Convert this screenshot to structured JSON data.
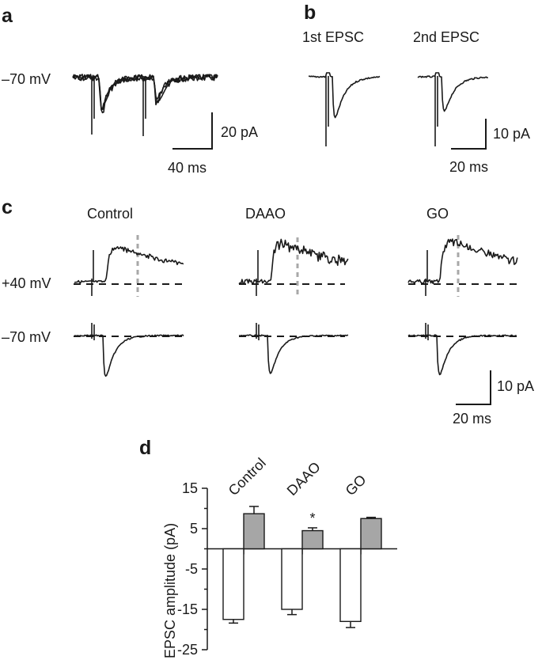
{
  "panel_a": {
    "letter": "a",
    "holding_label": "–70 mV",
    "scale_y_label": "20 pA",
    "scale_x_label": "40 ms"
  },
  "panel_b": {
    "letter": "b",
    "first_title": "1st EPSC",
    "second_title": "2nd EPSC",
    "scale_y_label": "10 pA",
    "scale_x_label": "20 ms"
  },
  "panel_c": {
    "letter": "c",
    "conditions": [
      "Control",
      "DAAO",
      "GO"
    ],
    "row_labels": [
      "+40 mV",
      "–70 mV"
    ],
    "scale_y_label": "10 pA",
    "scale_x_label": "20 ms"
  },
  "panel_d": {
    "letter": "d",
    "significance_marker": "*"
  },
  "chart_data": {
    "type": "bar",
    "title": "",
    "categories": [
      "Control",
      "DAAO",
      "GO"
    ],
    "ylabel": "EPSC amplitude (pA)",
    "xlabel": "",
    "ylim": [
      -25,
      15
    ],
    "yticks": [
      15,
      5,
      -5,
      -15,
      -25
    ],
    "grid": false,
    "series": [
      {
        "values": [
          -17.5,
          -15.0,
          -18.0
        ],
        "errors": [
          0.9,
          1.3,
          1.5
        ],
        "color": "#ffffff"
      },
      {
        "values": [
          8.7,
          4.5,
          7.5
        ],
        "errors": [
          1.8,
          0.7,
          0.3
        ],
        "color": "#a6a6a6"
      }
    ],
    "annotations": [
      {
        "category": "DAAO",
        "text": "*"
      }
    ]
  }
}
